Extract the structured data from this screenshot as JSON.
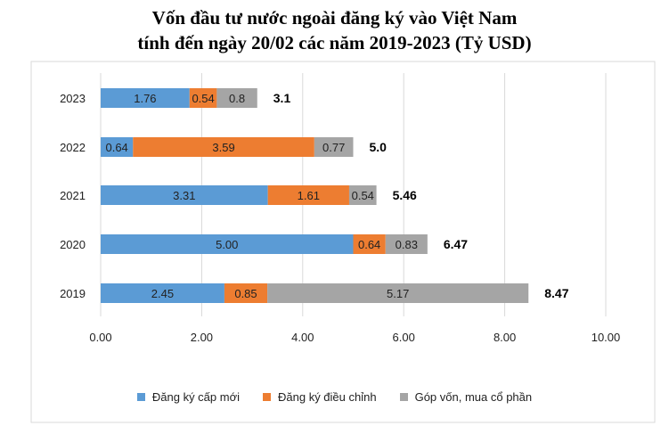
{
  "chart_data": {
    "type": "bar",
    "orientation": "horizontal",
    "stacked": true,
    "title_lines": [
      "Vốn đầu tư nước ngoài đăng ký vào Việt Nam",
      "tính đến ngày 20/02 các năm 2019-2023 (Tỷ USD)"
    ],
    "categories": [
      "2023",
      "2022",
      "2021",
      "2020",
      "2019"
    ],
    "series": [
      {
        "name": "Đăng ký cấp mới",
        "color": "#5b9bd5",
        "values": [
          1.76,
          0.64,
          3.31,
          5.0,
          2.45
        ],
        "labels": [
          "1.76",
          "0.64",
          "3.31",
          "5.00",
          "2.45"
        ]
      },
      {
        "name": "Đăng ký điều chỉnh",
        "color": "#ed7d31",
        "values": [
          0.54,
          3.59,
          1.61,
          0.64,
          0.85
        ],
        "labels": [
          "0.54",
          "3.59",
          "1.61",
          "0.64",
          "0.85"
        ]
      },
      {
        "name": "Góp vốn, mua cổ phần",
        "color": "#a5a5a5",
        "values": [
          0.8,
          0.77,
          0.54,
          0.83,
          5.17
        ],
        "labels": [
          "0.8",
          "0.77",
          "0.54",
          "0.83",
          "5.17"
        ]
      }
    ],
    "totals": [
      "3.1",
      "5.0",
      "5.46",
      "6.47",
      "8.47"
    ],
    "xlim": [
      0,
      10
    ],
    "xticks": [
      "0.00",
      "2.00",
      "4.00",
      "6.00",
      "8.00",
      "10.00"
    ],
    "grid": true,
    "legend": "bottom"
  }
}
